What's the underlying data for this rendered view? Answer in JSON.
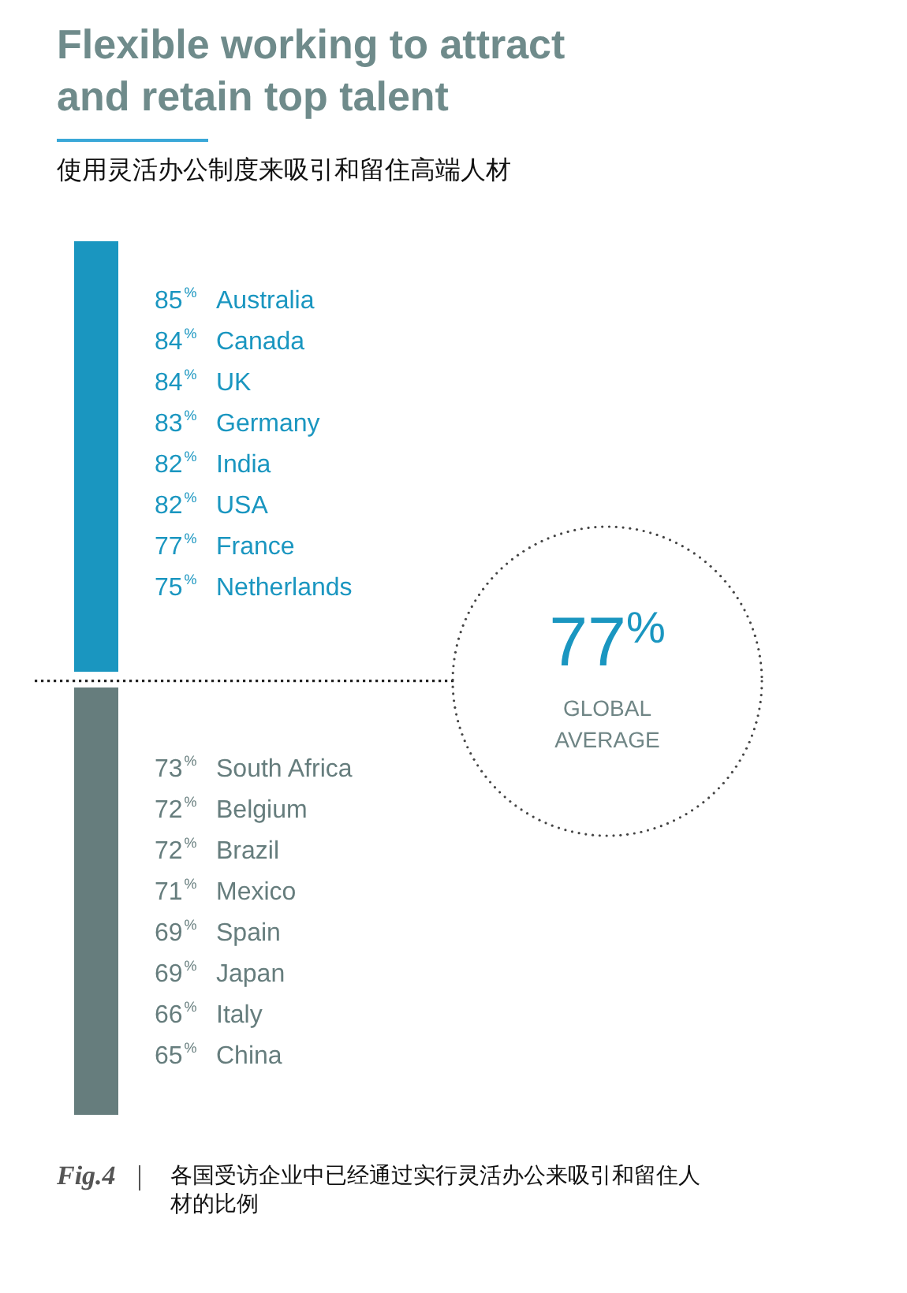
{
  "chart_data": {
    "type": "other",
    "title": "Flexible working to attract and retain top talent",
    "subtitle": "使用灵活办公制度来吸引和留住高端人材",
    "categories": [
      "Australia",
      "Canada",
      "UK",
      "Germany",
      "India",
      "USA",
      "France",
      "Netherlands",
      "South Africa",
      "Belgium",
      "Brazil",
      "Mexico",
      "Spain",
      "Japan",
      "Italy",
      "China"
    ],
    "values": [
      85,
      84,
      84,
      83,
      82,
      82,
      77,
      75,
      73,
      72,
      72,
      71,
      69,
      69,
      66,
      65
    ],
    "value_labels": [
      "85%",
      "84%",
      "84%",
      "83%",
      "82%",
      "82%",
      "77%",
      "75%",
      "73%",
      "72%",
      "72%",
      "71%",
      "69%",
      "69%",
      "66%",
      "65%"
    ],
    "colors": [
      "#1a96c0",
      "#1a96c0",
      "#1a96c0",
      "#1a96c0",
      "#1a96c0",
      "#1a96c0",
      "#1a96c0",
      "#1a96c0",
      "#667d7d",
      "#667d7d",
      "#667d7d",
      "#667d7d",
      "#667d7d",
      "#667d7d",
      "#667d7d",
      "#667d7d"
    ],
    "annotations": [
      "77%",
      "GLOBAL AVERAGE",
      "Fig.4",
      "各国受访企业中已经通过实行灵活办公来吸引和留住人材的比例"
    ]
  }
}
